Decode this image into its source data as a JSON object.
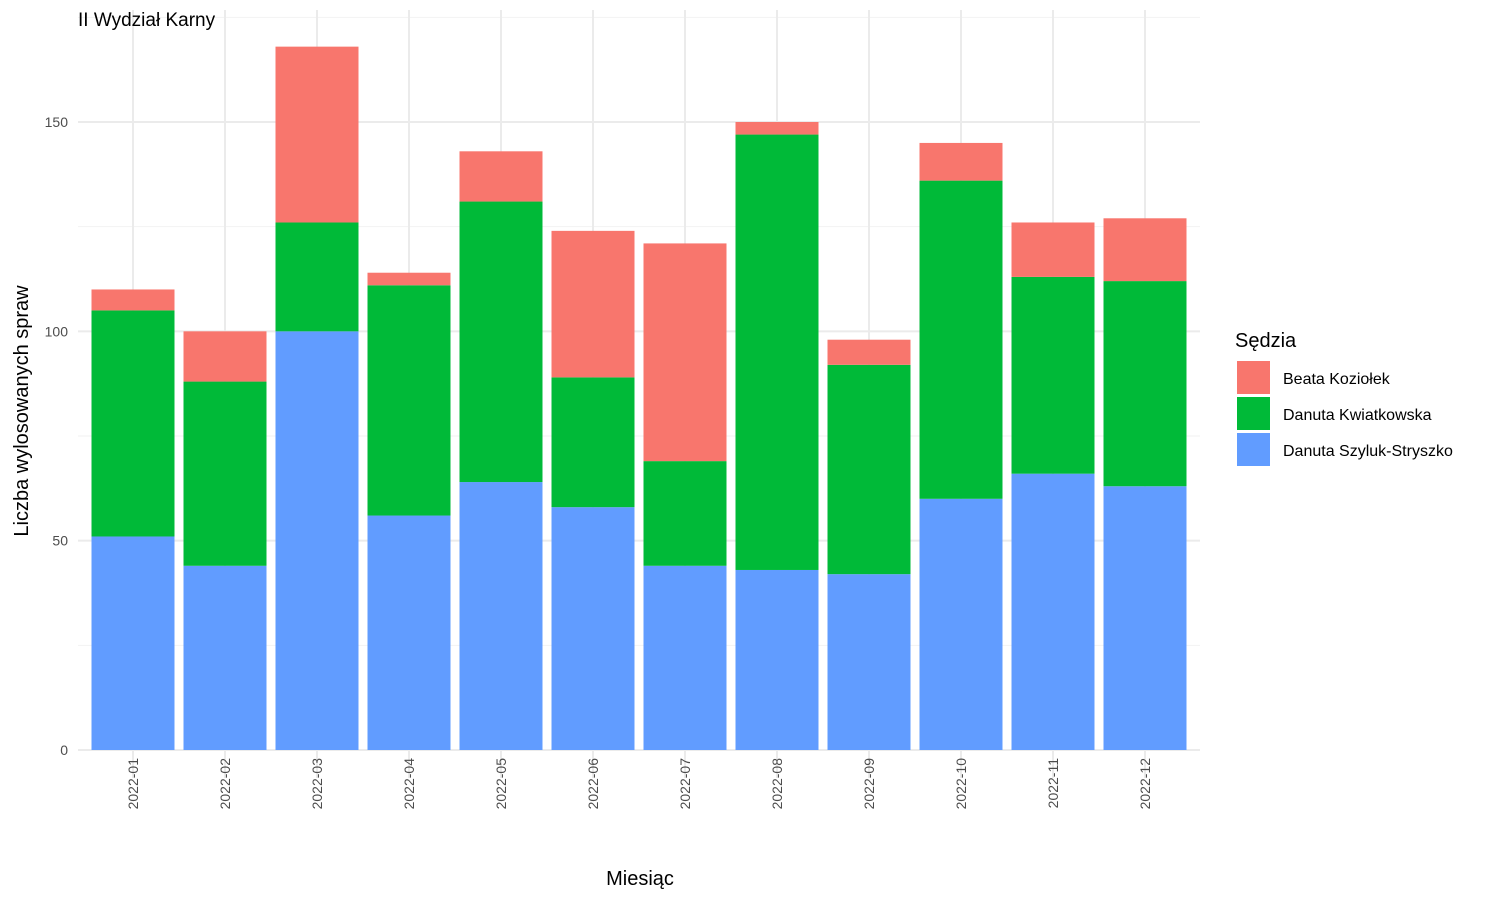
{
  "chart_data": {
    "type": "bar",
    "stacked": true,
    "title": "II Wydział Karny",
    "xlabel": "Miesiąc",
    "ylabel": "Liczba wylosowanych spraw",
    "categories": [
      "2022-01",
      "2022-02",
      "2022-03",
      "2022-04",
      "2022-05",
      "2022-06",
      "2022-07",
      "2022-08",
      "2022-09",
      "2022-10",
      "2022-11",
      "2022-12"
    ],
    "series": [
      {
        "name": "Danuta Szyluk-Stryszko",
        "color": "#619CFF",
        "values": [
          51,
          44,
          100,
          56,
          64,
          58,
          44,
          43,
          42,
          60,
          66,
          63
        ]
      },
      {
        "name": "Danuta Kwiatkowska",
        "color": "#00BA38",
        "values": [
          54,
          44,
          26,
          55,
          67,
          31,
          25,
          104,
          50,
          76,
          47,
          49
        ]
      },
      {
        "name": "Beata Koziołek",
        "color": "#F8766D",
        "values": [
          5,
          12,
          42,
          3,
          12,
          35,
          52,
          3,
          6,
          9,
          13,
          15
        ]
      }
    ],
    "ylim": [
      0,
      170
    ],
    "yticks": [
      0,
      50,
      100,
      150
    ],
    "ytick_labels": [
      "0",
      "50",
      "100",
      "150"
    ],
    "grid": true,
    "legend": {
      "title": "Sędzia",
      "position": "right",
      "order": [
        "Beata Koziołek",
        "Danuta Kwiatkowska",
        "Danuta Szyluk-Stryszko"
      ]
    }
  }
}
